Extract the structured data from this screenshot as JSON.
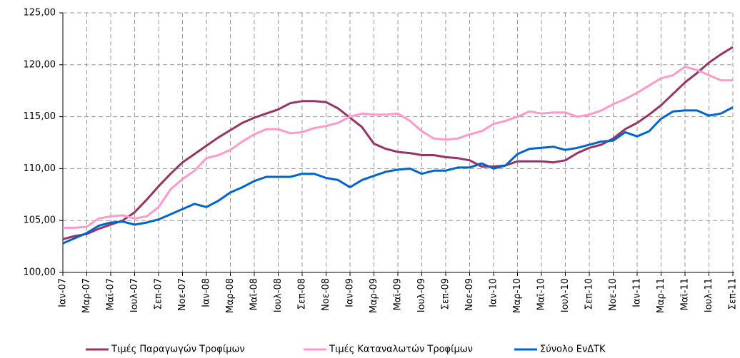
{
  "chart_data": {
    "type": "line",
    "categories": [
      "Ιαν-07",
      null,
      "Μαρ-07",
      null,
      "Μαϊ-07",
      null,
      "Ιουλ-07",
      null,
      "Σεπ-07",
      null,
      "Νοε-07",
      null,
      "Ιαν-08",
      null,
      "Μαρ-08",
      null,
      "Μαϊ-08",
      null,
      "Ιουλ-08",
      null,
      "Σεπ-08",
      null,
      "Νοε-08",
      null,
      "Ιαν-09",
      null,
      "Μαρ-09",
      null,
      "Μαϊ-09",
      null,
      "Ιουλ-09",
      null,
      "Σεπ-09",
      null,
      "Νοε-09",
      null,
      "Ιαν-10",
      null,
      "Μαρ-10",
      null,
      "Μαϊ-10",
      null,
      "Ιουλ-10",
      null,
      "Σεπ-10",
      null,
      "Νοε-10",
      null,
      "Ιαν-11",
      null,
      "Μαρ-11",
      null,
      "Μαϊ-11",
      null,
      "Ιουλ-11",
      null,
      "Σεπ-11"
    ],
    "series": [
      {
        "name": "Τιμές Παραγωγών Τροφίμων",
        "color": "#993366",
        "values": [
          103.2,
          103.5,
          103.7,
          104.2,
          104.6,
          105.0,
          105.8,
          107.0,
          108.3,
          109.5,
          110.6,
          111.4,
          112.2,
          113.0,
          113.7,
          114.4,
          114.9,
          115.3,
          115.7,
          116.3,
          116.5,
          116.5,
          116.4,
          115.8,
          114.9,
          114.0,
          112.4,
          111.9,
          111.6,
          111.5,
          111.3,
          111.3,
          111.1,
          111.0,
          110.8,
          110.2,
          110.2,
          110.3,
          110.7,
          110.7,
          110.7,
          110.6,
          110.8,
          111.5,
          112.0,
          112.3,
          112.9,
          113.8,
          114.4,
          115.2,
          116.1,
          117.2,
          118.3,
          119.2,
          120.2,
          121.0,
          121.7
        ]
      },
      {
        "name": "Τιμές Καταναλωτών Τροφίμων",
        "color": "#ff99cc",
        "values": [
          104.3,
          104.3,
          104.4,
          105.2,
          105.4,
          105.5,
          105.2,
          105.4,
          106.3,
          108.0,
          109.0,
          109.8,
          111.0,
          111.3,
          111.8,
          112.6,
          113.3,
          113.8,
          113.8,
          113.4,
          113.5,
          113.9,
          114.1,
          114.4,
          115.0,
          115.3,
          115.2,
          115.2,
          115.3,
          114.6,
          113.6,
          112.9,
          112.8,
          112.9,
          113.3,
          113.6,
          114.3,
          114.6,
          115.0,
          115.5,
          115.3,
          115.4,
          115.4,
          115.0,
          115.2,
          115.6,
          116.2,
          116.7,
          117.3,
          118.0,
          118.7,
          119.0,
          119.8,
          119.5,
          119.0,
          118.5,
          118.5
        ]
      },
      {
        "name": "Σύνολο ΕνΔΤΚ",
        "color": "#0066cc",
        "values": [
          102.8,
          103.3,
          103.8,
          104.5,
          104.8,
          104.9,
          104.6,
          104.8,
          105.1,
          105.6,
          106.1,
          106.6,
          106.3,
          106.9,
          107.7,
          108.2,
          108.8,
          109.2,
          109.2,
          109.2,
          109.5,
          109.5,
          109.1,
          108.9,
          108.2,
          108.9,
          109.3,
          109.7,
          109.9,
          110.0,
          109.5,
          109.8,
          109.8,
          110.1,
          110.1,
          110.5,
          110.0,
          110.3,
          111.4,
          111.9,
          112.0,
          112.1,
          111.8,
          112.0,
          112.3,
          112.6,
          112.7,
          113.5,
          113.1,
          113.6,
          114.8,
          115.5,
          115.6,
          115.6,
          115.1,
          115.3,
          115.9
        ]
      }
    ],
    "ylim": [
      100,
      125
    ],
    "yticks": [
      {
        "value": 100,
        "label": "100,00"
      },
      {
        "value": 105,
        "label": "105,00"
      },
      {
        "value": 110,
        "label": "110,00"
      },
      {
        "value": 115,
        "label": "115,00"
      },
      {
        "value": 120,
        "label": "120,00"
      },
      {
        "value": 125,
        "label": "125,00"
      }
    ],
    "grid": true,
    "legend": "bottom"
  }
}
